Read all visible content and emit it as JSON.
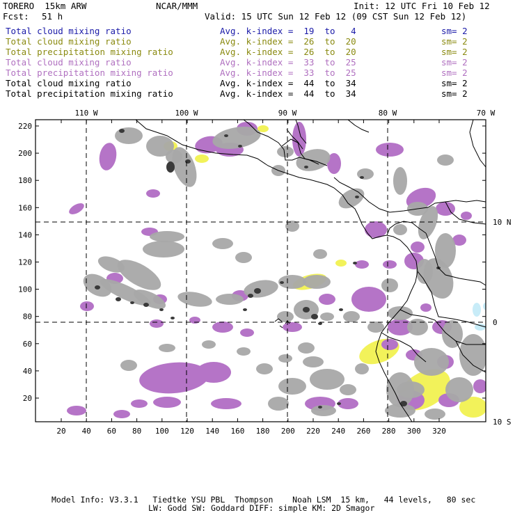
{
  "header": {
    "model": "TORERO  15km ARW",
    "center": "NCAR/MMM",
    "init": "Init: 12 UTC Fri 10 Feb 12",
    "fcst_label": "Fcst:",
    "fcst_value": "51 h",
    "valid": "Valid: 15 UTC Sun 12 Feb 12 (09 CST Sun 12 Feb 12)"
  },
  "legend": [
    {
      "field": "Total cloud mixing ratio",
      "kindex": "Avg. k-index =  19  to   4",
      "sm": "sm= 2",
      "color": "#1a1aa8"
    },
    {
      "field": "Total cloud mixing ratio",
      "kindex": "Avg. k-index =  26  to  20",
      "sm": "sm= 2",
      "color": "#8a8a10"
    },
    {
      "field": "Total precipitation mixing ratio",
      "kindex": "Avg. k-index =  26  to  20",
      "sm": "sm= 2",
      "color": "#8a8a10"
    },
    {
      "field": "Total cloud mixing ratio",
      "kindex": "Avg. k-index =  33  to  25",
      "sm": "sm= 2",
      "color": "#b070c0"
    },
    {
      "field": "Total precipitation mixing ratio",
      "kindex": "Avg. k-index =  33  to  25",
      "sm": "sm= 2",
      "color": "#b070c0"
    },
    {
      "field": "Total cloud mixing ratio",
      "kindex": "Avg. k-index =  44  to  34",
      "sm": "sm= 2",
      "color": "#000000"
    },
    {
      "field": "Total precipitation mixing ratio",
      "kindex": "Avg. k-index =  44  to  34",
      "sm": "sm= 2",
      "color": "#000000"
    }
  ],
  "map": {
    "lon_labels": [
      "110 W",
      "100 W",
      "90 W",
      "80 W",
      "70 W"
    ],
    "lat_labels": [
      "10 N",
      "0",
      "10 S"
    ],
    "x_ticks": [
      "20",
      "40",
      "60",
      "80",
      "100",
      "120",
      "140",
      "160",
      "180",
      "200",
      "220",
      "240",
      "260",
      "280",
      "300",
      "320"
    ],
    "y_ticks": [
      "220",
      "200",
      "180",
      "160",
      "140",
      "120",
      "100",
      "80",
      "60",
      "40",
      "20"
    ],
    "colors": {
      "gray": "#a8a8a8",
      "dark_core": "#3a3a3a",
      "purple": "#b574c7",
      "yellow": "#f2f25a",
      "light_blue": "#c8ecf8"
    }
  },
  "footer": {
    "line1": "Model Info: V3.3.1   Tiedtke YSU PBL  Thompson    Noah LSM  15 km,   44 levels,   80 sec",
    "line2": "LW: Godd SW: Goddard DIFF: simple KM: 2D Smagor"
  }
}
